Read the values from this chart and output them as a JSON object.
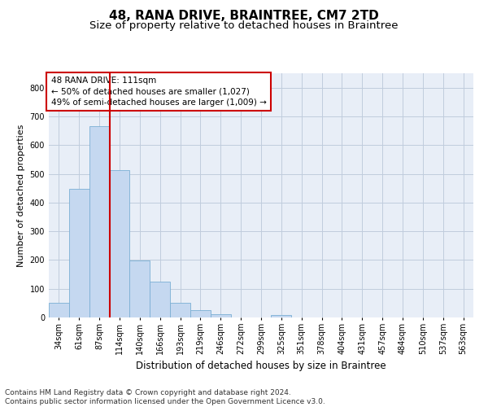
{
  "title": "48, RANA DRIVE, BRAINTREE, CM7 2TD",
  "subtitle": "Size of property relative to detached houses in Braintree",
  "xlabel": "Distribution of detached houses by size in Braintree",
  "ylabel": "Number of detached properties",
  "bar_labels": [
    "34sqm",
    "61sqm",
    "87sqm",
    "114sqm",
    "140sqm",
    "166sqm",
    "193sqm",
    "219sqm",
    "246sqm",
    "272sqm",
    "299sqm",
    "325sqm",
    "351sqm",
    "378sqm",
    "404sqm",
    "431sqm",
    "457sqm",
    "484sqm",
    "510sqm",
    "537sqm",
    "563sqm"
  ],
  "bar_values": [
    50,
    447,
    667,
    514,
    197,
    126,
    50,
    25,
    10,
    0,
    0,
    8,
    0,
    0,
    0,
    0,
    0,
    0,
    0,
    0,
    0
  ],
  "bar_color": "#c5d8f0",
  "bar_edgecolor": "#7bafd4",
  "vline_x": 2.5,
  "vline_color": "#cc0000",
  "ylim": [
    0,
    850
  ],
  "yticks": [
    0,
    100,
    200,
    300,
    400,
    500,
    600,
    700,
    800
  ],
  "annotation_text": "48 RANA DRIVE: 111sqm\n← 50% of detached houses are smaller (1,027)\n49% of semi-detached houses are larger (1,009) →",
  "annotation_box_color": "#ffffff",
  "annotation_box_edgecolor": "#cc0000",
  "grid_color": "#c0ccdd",
  "bg_color": "#e8eef7",
  "footnote": "Contains HM Land Registry data © Crown copyright and database right 2024.\nContains public sector information licensed under the Open Government Licence v3.0.",
  "title_fontsize": 11,
  "subtitle_fontsize": 9.5,
  "xlabel_fontsize": 8.5,
  "ylabel_fontsize": 8,
  "tick_fontsize": 7,
  "annotation_fontsize": 7.5,
  "footnote_fontsize": 6.5
}
